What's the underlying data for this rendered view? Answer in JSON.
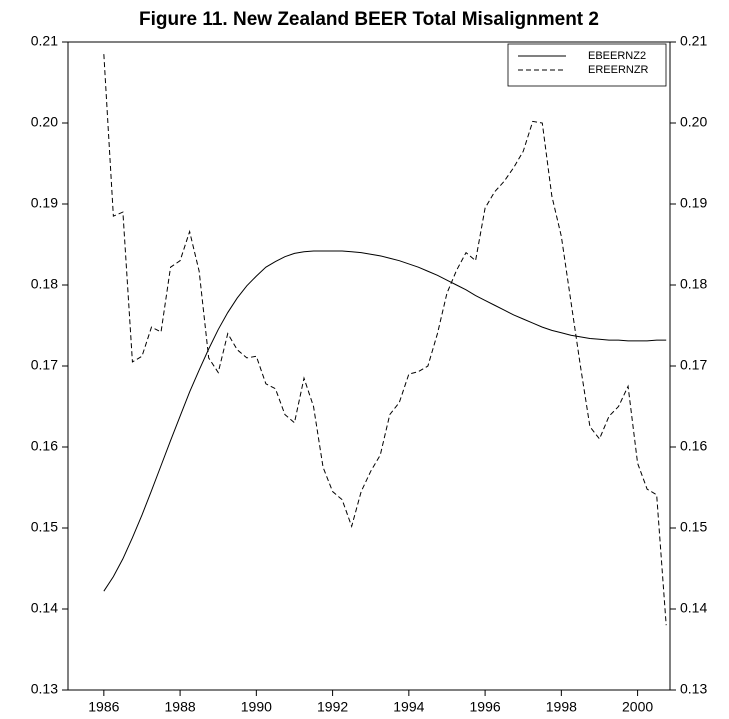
{
  "chart_data": {
    "type": "line",
    "title": "Figure 11. New Zealand BEER Total Misalignment 2",
    "x": [
      1986,
      1986.25,
      1986.5,
      1986.75,
      1987,
      1987.25,
      1987.5,
      1987.75,
      1988,
      1988.25,
      1988.5,
      1988.75,
      1989,
      1989.25,
      1989.5,
      1989.75,
      1990,
      1990.25,
      1990.5,
      1990.75,
      1991,
      1991.25,
      1991.5,
      1991.75,
      1992,
      1992.25,
      1992.5,
      1992.75,
      1993,
      1993.25,
      1993.5,
      1993.75,
      1994,
      1994.25,
      1994.5,
      1994.75,
      1995,
      1995.25,
      1995.5,
      1995.75,
      1996,
      1996.25,
      1996.5,
      1996.75,
      1997,
      1997.25,
      1997.5,
      1997.75,
      1998,
      1998.25,
      1998.5,
      1998.75,
      1999,
      1999.25,
      1999.5,
      1999.75,
      2000,
      2000.25,
      2000.5,
      2000.75
    ],
    "series": [
      {
        "name": "EBEERNZ2",
        "color": "#000000",
        "dash": false,
        "values": [
          0.1422,
          0.144,
          0.1462,
          0.1488,
          0.1516,
          0.1546,
          0.1577,
          0.1608,
          0.1638,
          0.1668,
          0.1695,
          0.1721,
          0.1745,
          0.1766,
          0.1784,
          0.1799,
          0.1811,
          0.1822,
          0.1829,
          0.1835,
          0.1839,
          0.1841,
          0.1842,
          0.1842,
          0.1842,
          0.1842,
          0.1841,
          0.184,
          0.1838,
          0.1836,
          0.1833,
          0.183,
          0.1826,
          0.1822,
          0.1817,
          0.1812,
          0.1806,
          0.18,
          0.1794,
          0.1787,
          0.1781,
          0.1775,
          0.1769,
          0.1763,
          0.1758,
          0.1753,
          0.1748,
          0.1744,
          0.1741,
          0.1738,
          0.1736,
          0.1734,
          0.1733,
          0.1732,
          0.1732,
          0.1731,
          0.1731,
          0.1731,
          0.1732,
          0.1732
        ]
      },
      {
        "name": "EREERNZR",
        "color": "#000000",
        "dash": true,
        "values": [
          0.2085,
          0.1885,
          0.189,
          0.1705,
          0.1712,
          0.1748,
          0.1742,
          0.1822,
          0.183,
          0.1866,
          0.1817,
          0.171,
          0.1692,
          0.174,
          0.172,
          0.171,
          0.1712,
          0.1678,
          0.1672,
          0.164,
          0.163,
          0.1685,
          0.165,
          0.1575,
          0.1545,
          0.1535,
          0.1502,
          0.1545,
          0.157,
          0.159,
          0.164,
          0.1655,
          0.169,
          0.1693,
          0.17,
          0.174,
          0.179,
          0.1818,
          0.184,
          0.183,
          0.1895,
          0.1915,
          0.1928,
          0.1945,
          0.1965,
          0.2002,
          0.2,
          0.191,
          0.186,
          0.178,
          0.17,
          0.1625,
          0.161,
          0.1638,
          0.165,
          0.1675,
          0.158,
          0.1548,
          0.1541,
          0.138
        ]
      }
    ],
    "xlim": [
      1985.06,
      2000.85
    ],
    "xticks": [
      1986,
      1988,
      1990,
      1992,
      1994,
      1996,
      1998,
      2000
    ],
    "ylim": [
      0.13,
      0.21
    ],
    "yticks": [
      0.13,
      0.14,
      0.15,
      0.16,
      0.17,
      0.18,
      0.19,
      {
        "value": 0.2,
        "label": "0.20"
      },
      0.21
    ],
    "y2lim": [
      0.13,
      0.21
    ],
    "y2ticks": [
      0.13,
      0.14,
      0.15,
      0.16,
      0.17,
      0.18,
      0.19,
      {
        "value": 0.2,
        "label": "0.20"
      },
      0.21
    ],
    "legend": "upper right",
    "grid": false
  }
}
